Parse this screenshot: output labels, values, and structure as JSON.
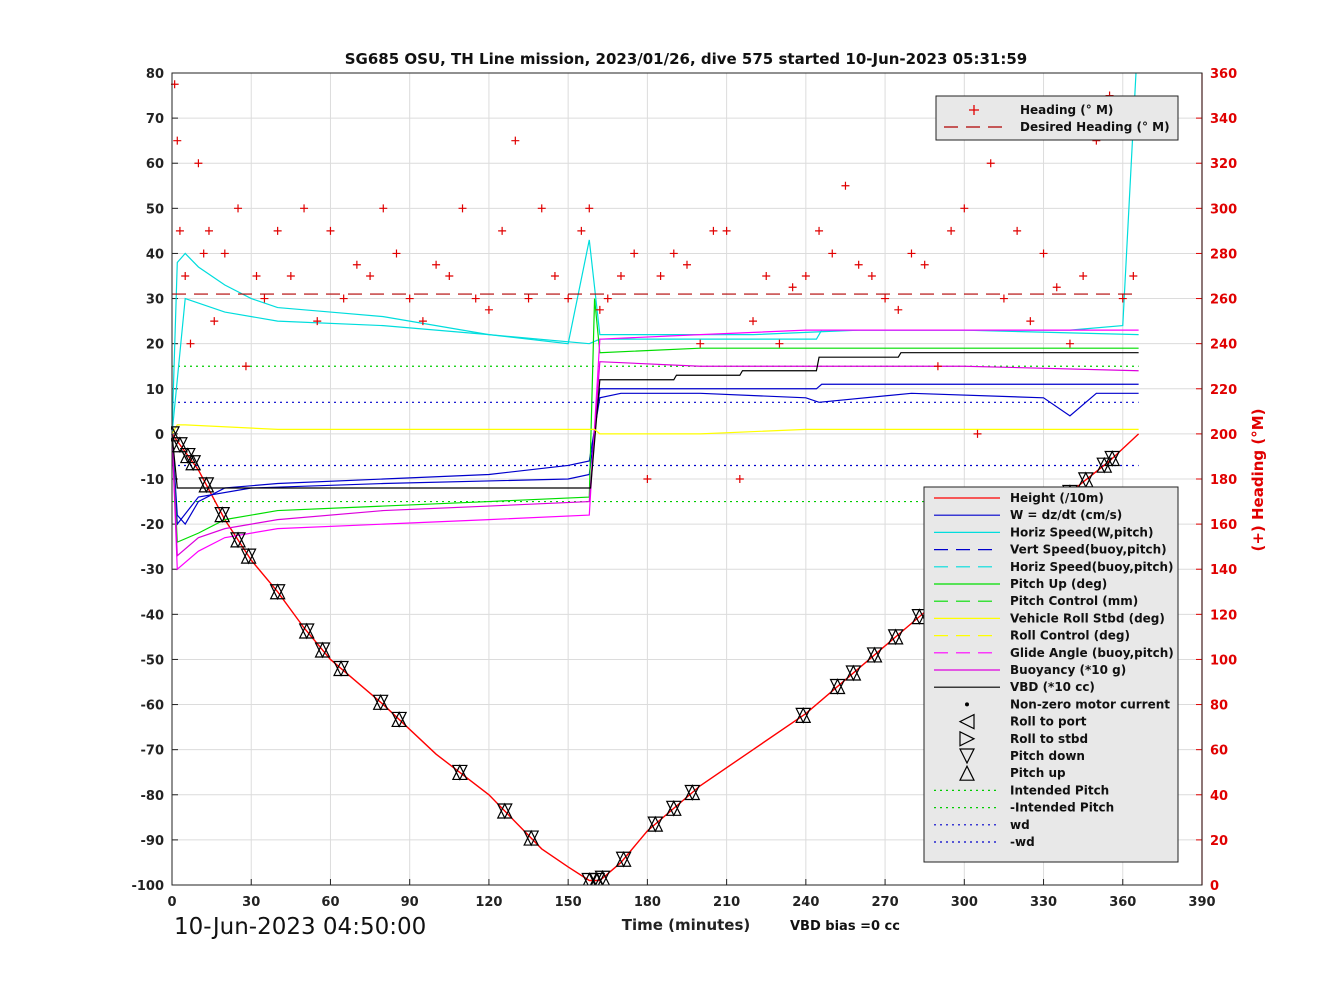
{
  "chart_data": {
    "type": "line",
    "title": "SG685 OSU, TH Line mission, 2023/01/26, dive 575 started 10-Jun-2023 05:31:59",
    "xlabel": "Time (minutes)",
    "ylabel_right": "(+) Heading (°M)",
    "xlim": [
      0,
      390
    ],
    "ylim_left": [
      -100,
      80
    ],
    "ylim_right": [
      0,
      360
    ],
    "x_ticks": [
      "0",
      "30",
      "60",
      "90",
      "120",
      "150",
      "180",
      "210",
      "240",
      "270",
      "300",
      "330",
      "360",
      "390"
    ],
    "y_ticks_left": [
      "80",
      "70",
      "60",
      "50",
      "40",
      "30",
      "20",
      "10",
      "0",
      "-10",
      "-20",
      "-30",
      "-40",
      "-50",
      "-60",
      "-70",
      "-80",
      "-90",
      "-100"
    ],
    "y_ticks_right": [
      "360",
      "340",
      "320",
      "300",
      "280",
      "260",
      "240",
      "220",
      "200",
      "180",
      "160",
      "140",
      "120",
      "100",
      "80",
      "60",
      "40",
      "20",
      "0"
    ],
    "grid": true,
    "annotations": {
      "start_time": "10-Jun-2023 04:50:00",
      "vbd_bias": "VBD bias =0 cc"
    },
    "heading_legend": {
      "placement": "top-right",
      "entries": [
        {
          "label": "Heading (° M)",
          "color": "#e00000",
          "style": "plus"
        },
        {
          "label": "Desired Heading (° M)",
          "color": "#b00000",
          "style": "dash"
        }
      ]
    },
    "legend": {
      "placement": "bottom-right",
      "entries": [
        {
          "label": "Height (/10m)",
          "color": "#ff0000",
          "style": "solid"
        },
        {
          "label": "W = dz/dt (cm/s)",
          "color": "#0000cc",
          "style": "solid"
        },
        {
          "label": "Horiz Speed(W,pitch)",
          "color": "#00dddd",
          "style": "solid"
        },
        {
          "label": "Vert Speed(buoy,pitch)",
          "color": "#0000cc",
          "style": "dash"
        },
        {
          "label": "Horiz Speed(buoy,pitch)",
          "color": "#00dddd",
          "style": "dash"
        },
        {
          "label": "Pitch Up (deg)",
          "color": "#00dd00",
          "style": "solid"
        },
        {
          "label": "Pitch Control (mm)",
          "color": "#00dd00",
          "style": "dash"
        },
        {
          "label": "Vehicle Roll Stbd (deg)",
          "color": "#ffff00",
          "style": "solid"
        },
        {
          "label": "Roll Control (deg)",
          "color": "#ffff00",
          "style": "dash"
        },
        {
          "label": "Glide Angle (buoy,pitch)",
          "color": "#ff00ff",
          "style": "dash"
        },
        {
          "label": "Buoyancy (*10 g)",
          "color": "#dd00dd",
          "style": "solid"
        },
        {
          "label": "VBD (*10 cc)",
          "color": "#000000",
          "style": "solid"
        },
        {
          "label": "Non-zero motor current",
          "color": "#000000",
          "style": "dot-marker"
        },
        {
          "label": "Roll to port",
          "color": "#000000",
          "style": "tri-left"
        },
        {
          "label": "Roll to stbd",
          "color": "#000000",
          "style": "tri-right"
        },
        {
          "label": "Pitch down",
          "color": "#000000",
          "style": "tri-down"
        },
        {
          "label": "Pitch up",
          "color": "#000000",
          "style": "tri-up"
        },
        {
          "label": "Intended Pitch",
          "color": "#00cc00",
          "style": "dotted"
        },
        {
          "label": "-Intended Pitch",
          "color": "#00cc00",
          "style": "dotted"
        },
        {
          "label": "wd",
          "color": "#0000cc",
          "style": "dotted"
        },
        {
          "label": "-wd",
          "color": "#0000cc",
          "style": "dotted"
        }
      ]
    },
    "series": [
      {
        "name": "Height (/10m)",
        "color": "#ff0000",
        "x": [
          0,
          10,
          20,
          30,
          40,
          50,
          60,
          80,
          100,
          120,
          140,
          150,
          158,
          162,
          170,
          180,
          200,
          220,
          240,
          260,
          280,
          300,
          320,
          340,
          355,
          366
        ],
        "y": [
          0,
          -8,
          -19,
          -28,
          -35,
          -43,
          -50,
          -60,
          -71,
          -80,
          -92,
          -96,
          -99,
          -99,
          -95,
          -88,
          -78,
          -70,
          -62,
          -52,
          -42,
          -32,
          -23,
          -13,
          -6,
          0
        ]
      },
      {
        "name": "W = dz/dt (cm/s)",
        "color": "#0000cc",
        "x": [
          0,
          2,
          5,
          10,
          20,
          40,
          80,
          120,
          150,
          158,
          162,
          170,
          200,
          240,
          245,
          280,
          330,
          340,
          350,
          366
        ],
        "y": [
          0,
          -18,
          -20,
          -15,
          -12,
          -11,
          -10,
          -9,
          -7,
          -6,
          8,
          9,
          9,
          8,
          7,
          9,
          8,
          4,
          9,
          9
        ]
      },
      {
        "name": "Horiz Speed(W,pitch)",
        "color": "#00dddd",
        "x": [
          0,
          2,
          5,
          10,
          20,
          30,
          40,
          60,
          80,
          100,
          120,
          150,
          158,
          162,
          180,
          220,
          260,
          300,
          340,
          360,
          365
        ],
        "y": [
          0,
          38,
          40,
          37,
          33,
          30,
          28,
          27,
          26,
          24,
          22,
          20,
          43,
          22,
          22,
          22,
          23,
          23,
          23,
          24,
          80
        ]
      },
      {
        "name": "Vert Speed(buoy,pitch)",
        "color": "#0000cc",
        "x": [
          0,
          2,
          10,
          30,
          80,
          150,
          158,
          162,
          200,
          244,
          246,
          300,
          366
        ],
        "y": [
          0,
          -20,
          -14,
          -12,
          -11,
          -10,
          -9,
          10,
          10,
          10,
          11,
          11,
          11
        ]
      },
      {
        "name": "Horiz Speed(buoy,pitch)",
        "color": "#00dddd",
        "x": [
          0,
          5,
          20,
          40,
          80,
          120,
          158,
          162,
          200,
          244,
          246,
          300,
          366
        ],
        "y": [
          0,
          30,
          27,
          25,
          24,
          22,
          20,
          21,
          21,
          21,
          23,
          23,
          22
        ]
      },
      {
        "name": "Pitch Up (deg)",
        "color": "#00dd00",
        "x": [
          0,
          2,
          10,
          20,
          40,
          80,
          120,
          158,
          160,
          162,
          200,
          240,
          280,
          320,
          366
        ],
        "y": [
          0,
          -24,
          -22,
          -19,
          -17,
          -16,
          -15,
          -14,
          30,
          18,
          19,
          19,
          19,
          19,
          19
        ]
      },
      {
        "name": "Glide Angle (buoy,pitch)",
        "color": "#ff00ff",
        "x": [
          0,
          2,
          10,
          20,
          40,
          80,
          120,
          158,
          162,
          200,
          240,
          300,
          366
        ],
        "y": [
          0,
          -30,
          -26,
          -23,
          -21,
          -20,
          -19,
          -18,
          21,
          22,
          23,
          23,
          23
        ]
      },
      {
        "name": "Buoyancy (*10 g)",
        "color": "#dd00dd",
        "x": [
          0,
          2,
          10,
          20,
          40,
          80,
          120,
          158,
          162,
          200,
          240,
          300,
          366
        ],
        "y": [
          0,
          -27,
          -23,
          -21,
          -19,
          -17,
          -16,
          -15,
          16,
          15,
          15,
          15,
          14
        ]
      },
      {
        "name": "VBD (*10 cc)",
        "color": "#000000",
        "x": [
          0,
          2,
          30,
          60,
          158,
          158.5,
          162,
          163,
          190,
          191,
          215,
          216,
          244,
          245,
          275,
          276,
          366
        ],
        "y": [
          0,
          -12,
          -12,
          -12,
          -12,
          -12,
          12,
          12,
          12,
          13,
          13,
          14,
          14,
          17,
          17,
          18,
          18
        ]
      },
      {
        "name": "Vehicle Roll Stbd (deg)",
        "color": "#ffff00",
        "x": [
          0,
          2,
          5,
          40,
          80,
          120,
          160,
          162,
          200,
          240,
          300,
          366
        ],
        "y": [
          0,
          2,
          2,
          1,
          1,
          1,
          1,
          0,
          0,
          1,
          1,
          1
        ]
      },
      {
        "name": "Desired Heading (° M)",
        "color": "#b00000",
        "x": [
          0,
          366
        ],
        "y": [
          262,
          262
        ]
      },
      {
        "name": "Intended Pitch",
        "color": "#00cc00",
        "x": [
          0,
          366
        ],
        "y": [
          15,
          15
        ]
      },
      {
        "name": "-Intended Pitch",
        "color": "#00cc00",
        "x": [
          0,
          366
        ],
        "y": [
          -15,
          -15
        ]
      },
      {
        "name": "wd",
        "color": "#0000cc",
        "x": [
          0,
          366
        ],
        "y": [
          7,
          7
        ]
      },
      {
        "name": "-wd",
        "color": "#0000cc",
        "x": [
          0,
          366
        ],
        "y": [
          -7,
          -7
        ]
      }
    ],
    "heading_points": {
      "x": [
        1,
        2,
        3,
        5,
        7,
        10,
        12,
        14,
        16,
        20,
        25,
        28,
        32,
        35,
        40,
        45,
        50,
        55,
        60,
        65,
        70,
        75,
        80,
        85,
        90,
        95,
        100,
        105,
        110,
        115,
        120,
        125,
        130,
        135,
        140,
        145,
        150,
        155,
        158,
        162,
        165,
        170,
        175,
        180,
        185,
        190,
        195,
        200,
        205,
        210,
        215,
        220,
        225,
        230,
        235,
        240,
        245,
        250,
        255,
        260,
        265,
        270,
        275,
        280,
        285,
        290,
        295,
        300,
        305,
        310,
        315,
        320,
        325,
        330,
        335,
        340,
        345,
        350,
        355,
        360,
        364
      ],
      "y": [
        355,
        330,
        290,
        270,
        240,
        320,
        280,
        290,
        250,
        280,
        300,
        230,
        270,
        260,
        290,
        270,
        300,
        250,
        290,
        260,
        275,
        270,
        300,
        280,
        260,
        250,
        275,
        270,
        300,
        260,
        255,
        290,
        330,
        260,
        300,
        270,
        260,
        290,
        300,
        255,
        260,
        270,
        280,
        180,
        270,
        280,
        275,
        240,
        290,
        290,
        180,
        250,
        270,
        240,
        265,
        270,
        290,
        280,
        310,
        275,
        270,
        260,
        255,
        280,
        275,
        230,
        290,
        300,
        200,
        320,
        260,
        290,
        250,
        280,
        265,
        240,
        270,
        330,
        350,
        260,
        270
      ]
    },
    "markers": {
      "pitch_events_x": [
        0,
        3,
        6,
        8,
        13,
        19,
        25,
        29,
        40,
        51,
        57,
        64,
        79,
        86,
        109,
        126,
        136,
        158,
        161,
        163,
        171,
        183,
        190,
        197,
        239,
        252,
        258,
        266,
        274,
        283,
        294,
        300,
        308,
        321,
        330,
        340,
        346,
        353,
        356
      ]
    }
  }
}
